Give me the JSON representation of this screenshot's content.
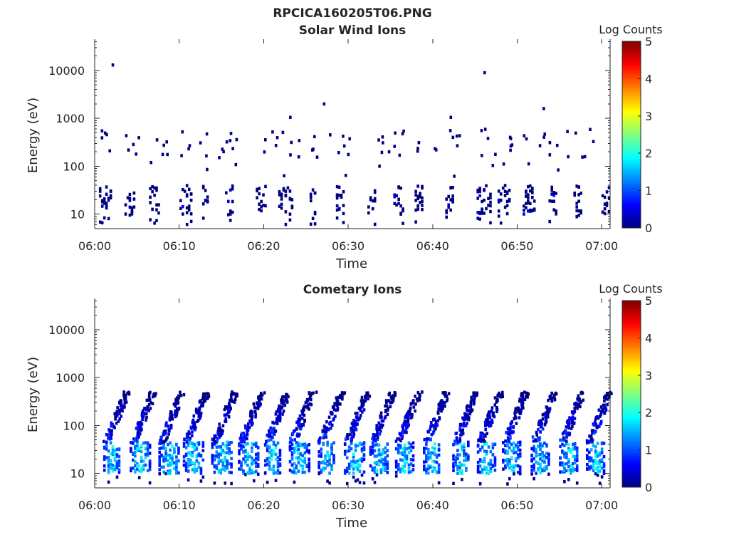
{
  "figure_title": "RPCICA160205T06.PNG",
  "chart_data": [
    {
      "type": "heatmap",
      "title": "Solar Wind Ions",
      "xlabel": "Time",
      "ylabel": "Energy (eV)",
      "x_range": [
        "06:00",
        "07:01"
      ],
      "ylim": [
        5,
        45000
      ],
      "yscale": "log",
      "xticks": [
        "06:00",
        "06:10",
        "06:20",
        "06:30",
        "06:40",
        "06:50",
        "07:00"
      ],
      "yticks": [
        "10",
        "100",
        "1000",
        "10000"
      ],
      "colorbar": {
        "label": "Log Counts",
        "range": [
          0,
          5
        ],
        "ticks": [
          "0",
          "1",
          "2",
          "3",
          "4",
          "5"
        ],
        "colormap": "jet"
      },
      "features": {
        "low_energy_bursts_eV": [
          10,
          40
        ],
        "mid_energy_points_eV": [
          150,
          600
        ],
        "burst_interval_min": 3,
        "typical_log_counts": 0,
        "isolated_points": [
          {
            "time": "06:02",
            "energy_eV": 13000
          },
          {
            "time": "06:27",
            "energy_eV": 2000
          },
          {
            "time": "06:46",
            "energy_eV": 9000
          },
          {
            "time": "06:53",
            "energy_eV": 1600
          },
          {
            "time": "06:23",
            "energy_eV": 1050
          },
          {
            "time": "06:42",
            "energy_eV": 1050
          }
        ]
      }
    },
    {
      "type": "heatmap",
      "title": "Cometary Ions",
      "xlabel": "Time",
      "ylabel": "Energy (eV)",
      "x_range": [
        "06:00",
        "07:01"
      ],
      "ylim": [
        5,
        45000
      ],
      "yscale": "log",
      "xticks": [
        "06:00",
        "06:10",
        "06:20",
        "06:30",
        "06:40",
        "06:50",
        "07:00"
      ],
      "yticks": [
        "10",
        "100",
        "1000",
        "10000"
      ],
      "colorbar": {
        "label": "Log Counts",
        "range": [
          0,
          5
        ],
        "ticks": [
          "0",
          "1",
          "2",
          "3",
          "4",
          "5"
        ],
        "colormap": "jet"
      },
      "features": {
        "core_energy_eV": [
          10,
          45
        ],
        "core_peak_log_counts": 1.9,
        "tail_energy_eV": [
          45,
          500
        ],
        "burst_interval_min": 3.2
      }
    }
  ]
}
